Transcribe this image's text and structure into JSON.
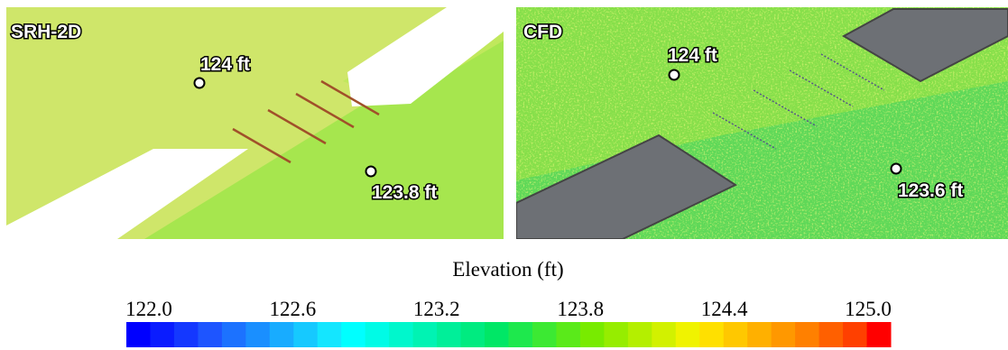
{
  "panels": [
    {
      "title": "SRH-2D",
      "labels": [
        "124 ft",
        "123.8 ft"
      ]
    },
    {
      "title": "CFD",
      "labels": [
        "124 ft",
        "123.6 ft"
      ]
    }
  ],
  "colorbar": {
    "title": "Elevation (ft)",
    "lim": [
      122,
      125
    ],
    "ticks": [
      {
        "value": 122,
        "label": "122.0"
      },
      {
        "value": 122.6,
        "label": "122.6"
      },
      {
        "value": 123.2,
        "label": "123.2"
      },
      {
        "value": 123.8,
        "label": "123.8"
      },
      {
        "value": 124.4,
        "label": "124.4"
      },
      {
        "value": 125,
        "label": "125.0"
      }
    ],
    "colors": [
      "#0000ff",
      "#0a1cff",
      "#1438ff",
      "#1e55ff",
      "#1c72ff",
      "#1a8fff",
      "#18acff",
      "#16c9ff",
      "#14e6ff",
      "#00ffff",
      "#00fbe6",
      "#00f7cc",
      "#00f3b3",
      "#00ef99",
      "#00eb80",
      "#00e766",
      "#1ee84d",
      "#3ce933",
      "#5aea1a",
      "#78eb00",
      "#96ed00",
      "#b4ef00",
      "#d2f100",
      "#f0f300",
      "#ffe000",
      "#ffc800",
      "#ffb000",
      "#ff9800",
      "#ff8000",
      "#ff6000",
      "#ff4000",
      "#ff0000"
    ]
  }
}
